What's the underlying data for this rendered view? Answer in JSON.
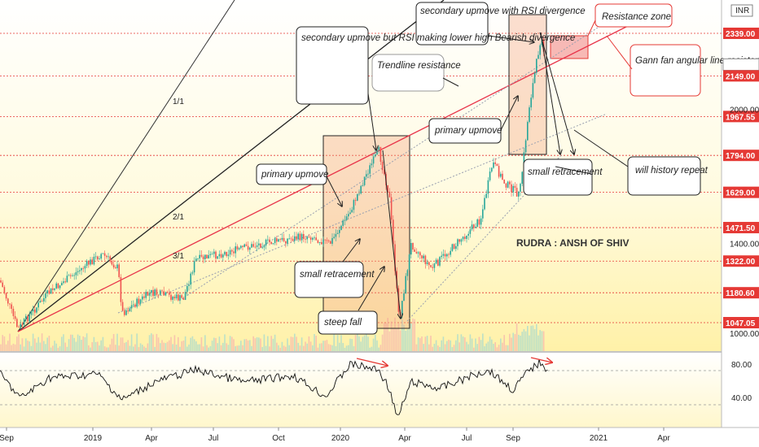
{
  "chart_data": {
    "type": "candlestick",
    "currency": "INR",
    "x_labels": [
      "Sep",
      "2019",
      "Apr",
      "Jul",
      "Oct",
      "2020",
      "Apr",
      "Jul",
      "Sep",
      "2021",
      "Apr"
    ],
    "price_axis_ticks": [
      "1000.00",
      "1400.00",
      "2000.00"
    ],
    "price_tags": [
      {
        "value": "2339.00",
        "color": "#e53935"
      },
      {
        "value": "2199.35",
        "color": "#ffffff"
      },
      {
        "value": "2149.00",
        "color": "#e53935"
      },
      {
        "value": "1967.55",
        "color": "#e53935"
      },
      {
        "value": "1794.00",
        "color": "#e53935"
      },
      {
        "value": "1629.00",
        "color": "#e53935"
      },
      {
        "value": "1471.50",
        "color": "#e53935"
      },
      {
        "value": "1322.00",
        "color": "#e53935"
      },
      {
        "value": "1180.60",
        "color": "#e53935"
      },
      {
        "value": "1047.05",
        "color": "#e53935"
      }
    ],
    "price_levels_dotted": [
      2339,
      2149,
      1967.55,
      1794,
      1629,
      1471.5,
      1322,
      1180.6,
      1047.05
    ],
    "rsi_ticks": [
      "80.00",
      "40.00"
    ],
    "gann_labels": [
      "1/1",
      "2/1",
      "3/1"
    ],
    "watermark": "RUDRA : ANSH OF SHIV",
    "annotations": [
      "secondary upmove with RSI divergence",
      "Resistance zone",
      "Gann fan angular line resistance",
      "secondary upmove but RSI making lower high Bearish divergence",
      "Trendline resistance",
      "primary upmove",
      "primary upmove",
      "small retracement",
      "small retracement",
      "steep fall",
      "will history repeat"
    ]
  },
  "colors": {
    "up": "#26a69a",
    "down": "#ef5350",
    "level": "#e53935",
    "bg_top": "#ffffff",
    "bg_bottom": "#fff3b0"
  }
}
